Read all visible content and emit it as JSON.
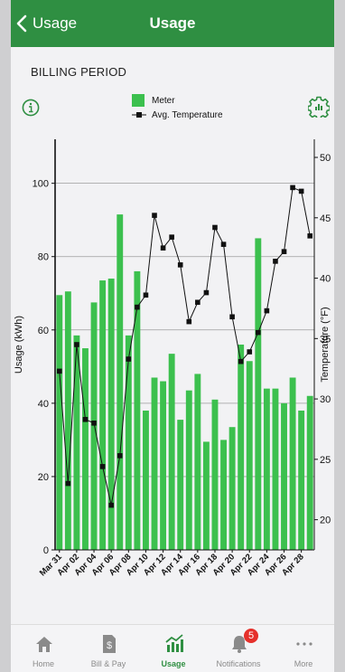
{
  "header": {
    "back_label": "Usage",
    "title": "Usage"
  },
  "section": {
    "title": "BILLING PERIOD"
  },
  "legend": {
    "meter": "Meter",
    "temperature": "Avg. Temperature"
  },
  "colors": {
    "bar": "#3cc04e",
    "header": "#2f8f42",
    "line": "#111111",
    "badge": "#e5302b"
  },
  "chart_data": {
    "type": "bar",
    "categories": [
      "Mar 31",
      "Apr 01",
      "Apr 02",
      "Apr 03",
      "Apr 04",
      "Apr 05",
      "Apr 06",
      "Apr 07",
      "Apr 08",
      "Apr 09",
      "Apr 10",
      "Apr 11",
      "Apr 12",
      "Apr 13",
      "Apr 14",
      "Apr 15",
      "Apr 16",
      "Apr 17",
      "Apr 18",
      "Apr 19",
      "Apr 20",
      "Apr 21",
      "Apr 22",
      "Apr 23",
      "Apr 24",
      "Apr 25",
      "Apr 26",
      "Apr 27",
      "Apr 28",
      "Apr 29"
    ],
    "tick_labels": [
      "Mar 31",
      "Apr 02",
      "Apr 04",
      "Apr 06",
      "Apr 08",
      "Apr 10",
      "Apr 12",
      "Apr 14",
      "Apr 16",
      "Apr 18",
      "Apr 20",
      "Apr 22",
      "Apr 24",
      "Apr 26",
      "Apr 28"
    ],
    "series": [
      {
        "name": "Meter",
        "type": "bar",
        "axis": "left",
        "values": [
          69.5,
          70.5,
          58.5,
          55,
          67.5,
          73.5,
          74,
          91.5,
          58.5,
          76,
          38,
          47,
          46,
          53.5,
          35.5,
          43.5,
          48,
          29.5,
          41,
          30,
          33.5,
          56,
          51.5,
          85,
          44,
          44,
          40,
          47,
          38,
          42
        ]
      },
      {
        "name": "Avg. Temperature",
        "type": "line",
        "axis": "right",
        "values": [
          32.3,
          23,
          34.5,
          28.3,
          28,
          24.4,
          21.2,
          25.3,
          33.3,
          37.6,
          38.6,
          45.2,
          42.5,
          43.4,
          41.1,
          36.4,
          38,
          38.8,
          44.2,
          42.8,
          36.8,
          33.1,
          33.9,
          35.5,
          37.3,
          41.4,
          42.2,
          47.5,
          47.2,
          43.5
        ]
      }
    ],
    "ylabel": "Usage (kWh)",
    "y2label": "Temperature (°F)",
    "ylim": [
      0,
      112
    ],
    "y2lim": [
      17.5,
      51.5
    ],
    "yticks": [
      0,
      20,
      40,
      60,
      80,
      100
    ],
    "y2ticks": [
      20,
      25,
      30,
      35,
      40,
      45,
      50
    ],
    "grid": true
  },
  "tabs": [
    {
      "label": "Home",
      "icon": "home-icon"
    },
    {
      "label": "Bill & Pay",
      "icon": "bill-icon"
    },
    {
      "label": "Usage",
      "icon": "usage-chart-icon",
      "active": true
    },
    {
      "label": "Notifications",
      "icon": "bell-icon",
      "badge": "5"
    },
    {
      "label": "More",
      "icon": "more-dots-icon"
    }
  ]
}
